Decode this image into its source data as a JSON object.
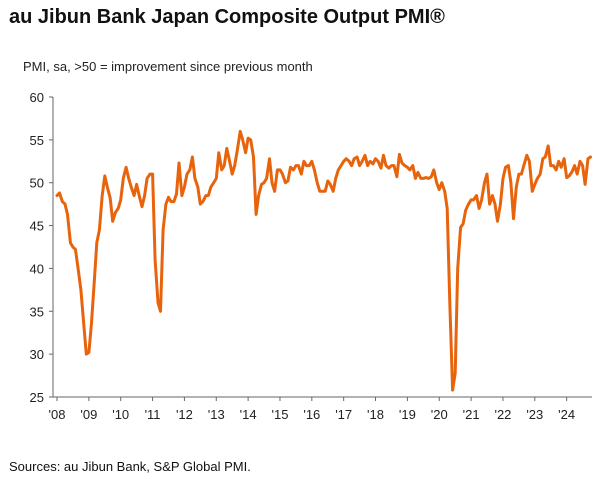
{
  "title": "au Jibun Bank Japan Composite Output PMI®",
  "source": "Sources: au Jibun Bank, S&P Global PMI.",
  "chart_data": {
    "type": "line",
    "title": "au Jibun Bank Japan Composite Output PMI®",
    "subtitle": "PMI, sa, >50 = improvement since previous month",
    "xlabel": "",
    "ylabel": "",
    "ylim": [
      25,
      60
    ],
    "yticks": [
      25,
      30,
      35,
      40,
      45,
      50,
      55,
      60
    ],
    "xlim": [
      2008.0,
      2024.67
    ],
    "xtick_labels": [
      "'08",
      "'09",
      "'10",
      "'11",
      "'12",
      "'13",
      "'14",
      "'15",
      "'16",
      "'17",
      "'18",
      "'19",
      "'20",
      "'21",
      "'22",
      "'23",
      "'24"
    ],
    "grid": false,
    "line_color": "#E8640C",
    "series": [
      {
        "name": "",
        "points": [
          [
            2008.0,
            48.5
          ],
          [
            2008.08,
            48.8
          ],
          [
            2008.17,
            47.8
          ],
          [
            2008.25,
            47.5
          ],
          [
            2008.33,
            46.3
          ],
          [
            2008.42,
            43.0
          ],
          [
            2008.5,
            42.5
          ],
          [
            2008.58,
            42.2
          ],
          [
            2008.67,
            39.8
          ],
          [
            2008.75,
            37.5
          ],
          [
            2008.83,
            34.0
          ],
          [
            2008.92,
            30.0
          ],
          [
            2009.0,
            30.2
          ],
          [
            2009.08,
            33.5
          ],
          [
            2009.17,
            38.5
          ],
          [
            2009.25,
            43.0
          ],
          [
            2009.33,
            44.5
          ],
          [
            2009.42,
            48.5
          ],
          [
            2009.5,
            50.8
          ],
          [
            2009.58,
            49.5
          ],
          [
            2009.67,
            48.2
          ],
          [
            2009.75,
            45.5
          ],
          [
            2009.83,
            46.5
          ],
          [
            2009.92,
            47.0
          ],
          [
            2010.0,
            48.0
          ],
          [
            2010.08,
            50.5
          ],
          [
            2010.17,
            51.8
          ],
          [
            2010.25,
            50.5
          ],
          [
            2010.33,
            49.5
          ],
          [
            2010.42,
            48.5
          ],
          [
            2010.5,
            49.8
          ],
          [
            2010.58,
            48.5
          ],
          [
            2010.67,
            47.2
          ],
          [
            2010.75,
            48.5
          ],
          [
            2010.83,
            50.5
          ],
          [
            2010.92,
            51.0
          ],
          [
            2011.0,
            51.0
          ],
          [
            2011.08,
            41.0
          ],
          [
            2011.17,
            36.0
          ],
          [
            2011.25,
            35.0
          ],
          [
            2011.33,
            44.5
          ],
          [
            2011.42,
            47.5
          ],
          [
            2011.5,
            48.3
          ],
          [
            2011.58,
            47.8
          ],
          [
            2011.67,
            47.8
          ],
          [
            2011.75,
            48.7
          ],
          [
            2011.83,
            52.3
          ],
          [
            2011.92,
            48.5
          ],
          [
            2012.0,
            49.5
          ],
          [
            2012.08,
            51.0
          ],
          [
            2012.17,
            51.5
          ],
          [
            2012.25,
            53.0
          ],
          [
            2012.33,
            50.5
          ],
          [
            2012.42,
            49.5
          ],
          [
            2012.5,
            47.5
          ],
          [
            2012.58,
            47.8
          ],
          [
            2012.67,
            48.5
          ],
          [
            2012.75,
            48.5
          ],
          [
            2012.83,
            49.5
          ],
          [
            2012.92,
            50.0
          ],
          [
            2013.0,
            50.5
          ],
          [
            2013.08,
            53.5
          ],
          [
            2013.17,
            51.5
          ],
          [
            2013.25,
            52.0
          ],
          [
            2013.33,
            54.0
          ],
          [
            2013.42,
            52.5
          ],
          [
            2013.5,
            51.0
          ],
          [
            2013.58,
            52.0
          ],
          [
            2013.67,
            54.0
          ],
          [
            2013.75,
            56.0
          ],
          [
            2013.83,
            55.0
          ],
          [
            2013.92,
            53.5
          ],
          [
            2014.0,
            55.2
          ],
          [
            2014.08,
            55.0
          ],
          [
            2014.17,
            53.0
          ],
          [
            2014.25,
            46.3
          ],
          [
            2014.33,
            48.5
          ],
          [
            2014.42,
            49.8
          ],
          [
            2014.5,
            50.0
          ],
          [
            2014.58,
            50.5
          ],
          [
            2014.67,
            52.8
          ],
          [
            2014.75,
            50.0
          ],
          [
            2014.83,
            49.0
          ],
          [
            2014.92,
            51.5
          ],
          [
            2015.0,
            51.5
          ],
          [
            2015.08,
            51.0
          ],
          [
            2015.17,
            50.0
          ],
          [
            2015.25,
            50.2
          ],
          [
            2015.33,
            51.8
          ],
          [
            2015.42,
            51.5
          ],
          [
            2015.5,
            52.0
          ],
          [
            2015.58,
            52.0
          ],
          [
            2015.67,
            51.0
          ],
          [
            2015.75,
            52.5
          ],
          [
            2015.83,
            52.0
          ],
          [
            2015.92,
            52.0
          ],
          [
            2016.0,
            52.5
          ],
          [
            2016.08,
            51.5
          ],
          [
            2016.17,
            50.0
          ],
          [
            2016.25,
            49.0
          ],
          [
            2016.33,
            49.0
          ],
          [
            2016.42,
            49.0
          ],
          [
            2016.5,
            50.2
          ],
          [
            2016.58,
            49.8
          ],
          [
            2016.67,
            49.0
          ],
          [
            2016.75,
            50.5
          ],
          [
            2016.83,
            51.5
          ],
          [
            2016.92,
            52.0
          ],
          [
            2017.0,
            52.5
          ],
          [
            2017.08,
            52.8
          ],
          [
            2017.17,
            52.5
          ],
          [
            2017.25,
            52.0
          ],
          [
            2017.33,
            52.8
          ],
          [
            2017.42,
            53.0
          ],
          [
            2017.5,
            52.0
          ],
          [
            2017.58,
            52.5
          ],
          [
            2017.67,
            53.2
          ],
          [
            2017.75,
            52.0
          ],
          [
            2017.83,
            52.5
          ],
          [
            2017.92,
            52.2
          ],
          [
            2018.0,
            52.8
          ],
          [
            2018.08,
            52.5
          ],
          [
            2018.17,
            51.7
          ],
          [
            2018.25,
            53.2
          ],
          [
            2018.33,
            52.0
          ],
          [
            2018.42,
            51.7
          ],
          [
            2018.5,
            52.0
          ],
          [
            2018.58,
            52.0
          ],
          [
            2018.67,
            50.7
          ],
          [
            2018.75,
            53.3
          ],
          [
            2018.83,
            52.3
          ],
          [
            2018.92,
            52.0
          ],
          [
            2019.0,
            51.8
          ],
          [
            2019.08,
            51.5
          ],
          [
            2019.17,
            52.0
          ],
          [
            2019.25,
            50.5
          ],
          [
            2019.33,
            51.2
          ],
          [
            2019.42,
            50.5
          ],
          [
            2019.5,
            50.5
          ],
          [
            2019.58,
            50.6
          ],
          [
            2019.67,
            50.5
          ],
          [
            2019.75,
            50.7
          ],
          [
            2019.83,
            51.5
          ],
          [
            2019.92,
            50.0
          ],
          [
            2020.0,
            49.2
          ],
          [
            2020.08,
            50.0
          ],
          [
            2020.17,
            49.0
          ],
          [
            2020.25,
            47.0
          ],
          [
            2020.33,
            36.0
          ],
          [
            2020.42,
            25.8
          ],
          [
            2020.5,
            27.8
          ],
          [
            2020.58,
            40.0
          ],
          [
            2020.67,
            44.8
          ],
          [
            2020.75,
            45.2
          ],
          [
            2020.83,
            46.8
          ],
          [
            2020.92,
            47.5
          ],
          [
            2021.0,
            48.0
          ],
          [
            2021.08,
            48.0
          ],
          [
            2021.17,
            48.5
          ],
          [
            2021.25,
            47.0
          ],
          [
            2021.33,
            48.0
          ],
          [
            2021.42,
            50.0
          ],
          [
            2021.5,
            51.0
          ],
          [
            2021.58,
            47.5
          ],
          [
            2021.67,
            48.5
          ],
          [
            2021.75,
            47.5
          ],
          [
            2021.83,
            45.5
          ],
          [
            2021.92,
            47.5
          ],
          [
            2022.0,
            50.5
          ],
          [
            2022.08,
            51.8
          ],
          [
            2022.17,
            52.0
          ],
          [
            2022.25,
            50.0
          ],
          [
            2022.33,
            45.8
          ],
          [
            2022.42,
            49.5
          ],
          [
            2022.5,
            51.0
          ],
          [
            2022.58,
            51.0
          ],
          [
            2022.67,
            52.2
          ],
          [
            2022.75,
            53.2
          ],
          [
            2022.83,
            52.5
          ],
          [
            2022.92,
            49.0
          ],
          [
            2023.0,
            49.8
          ],
          [
            2023.08,
            50.5
          ],
          [
            2023.17,
            51.0
          ],
          [
            2023.25,
            52.8
          ],
          [
            2023.33,
            53.0
          ],
          [
            2023.42,
            54.3
          ],
          [
            2023.5,
            52.0
          ],
          [
            2023.58,
            52.0
          ],
          [
            2023.67,
            51.5
          ],
          [
            2023.75,
            52.5
          ],
          [
            2023.83,
            51.8
          ],
          [
            2023.92,
            52.8
          ],
          [
            2024.0,
            50.6
          ],
          [
            2024.08,
            50.8
          ],
          [
            2024.17,
            51.3
          ],
          [
            2024.25,
            52.0
          ],
          [
            2024.33,
            51.0
          ],
          [
            2024.42,
            52.5
          ],
          [
            2024.5,
            52.0
          ],
          [
            2024.58,
            49.8
          ],
          [
            2024.67,
            52.8
          ],
          [
            2024.75,
            53.0
          ]
        ]
      }
    ]
  }
}
